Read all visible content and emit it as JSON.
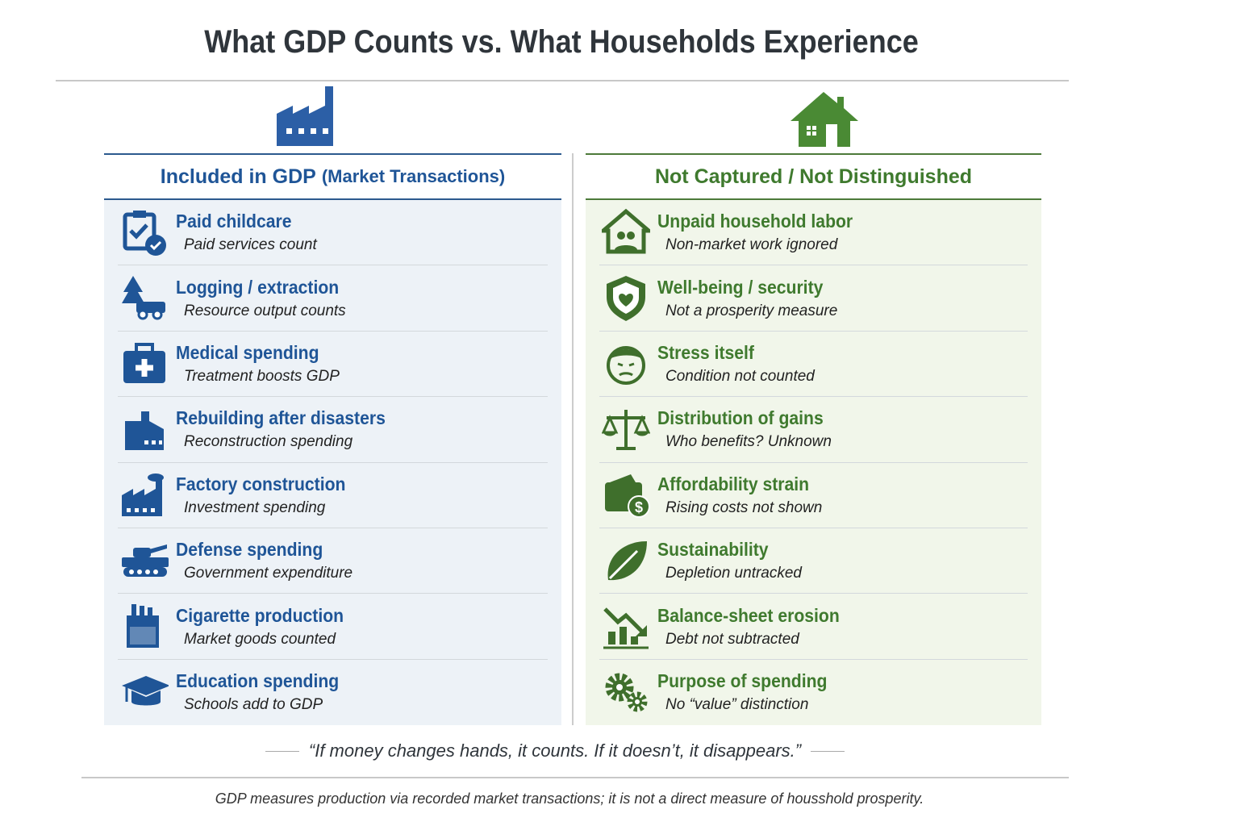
{
  "title": "What GDP Counts vs. What Households Experience",
  "colors": {
    "blue": "#1f5597",
    "green": "#3f7a2e"
  },
  "left": {
    "heading": "Included in GDP",
    "heading_sub": "(Market Transactions)",
    "top_icon": "factory-icon",
    "items": [
      {
        "title": "Paid childcare",
        "sub": "Paid services count",
        "icon": "clipboard-check-icon"
      },
      {
        "title": "Logging / extraction",
        "sub": "Resource output counts",
        "icon": "tree-truck-icon"
      },
      {
        "title": "Medical spending",
        "sub": "Treatment boosts GDP",
        "icon": "medical-kit-icon"
      },
      {
        "title": "Rebuilding after disasters",
        "sub": "Reconstruction spending",
        "icon": "building-icon"
      },
      {
        "title": "Factory construction",
        "sub": "Investment spending",
        "icon": "factory-icon"
      },
      {
        "title": "Defense spending",
        "sub": "Government expenditure",
        "icon": "tank-icon"
      },
      {
        "title": "Cigarette production",
        "sub": "Market goods counted",
        "icon": "cigarette-pack-icon"
      },
      {
        "title": "Education spending",
        "sub": "Schools add to GDP",
        "icon": "graduation-cap-icon"
      }
    ]
  },
  "right": {
    "heading": "Not Captured / Not Distinguished",
    "top_icon": "house-icon",
    "items": [
      {
        "title": "Unpaid household labor",
        "sub": "Non-market work ignored",
        "icon": "family-house-icon"
      },
      {
        "title": "Well-being / security",
        "sub": "Not a prosperity measure",
        "icon": "shield-heart-icon"
      },
      {
        "title": "Stress itself",
        "sub": "Condition not counted",
        "icon": "stressed-face-icon"
      },
      {
        "title": "Distribution of gains",
        "sub": "Who benefits? Unknown",
        "icon": "scales-icon"
      },
      {
        "title": "Affordability strain",
        "sub": "Rising costs not shown",
        "icon": "wallet-dollar-icon"
      },
      {
        "title": "Sustainability",
        "sub": "Depletion untracked",
        "icon": "leaf-icon"
      },
      {
        "title": "Balance-sheet erosion",
        "sub": "Debt not subtracted",
        "icon": "declining-chart-icon"
      },
      {
        "title": "Purpose of spending",
        "sub": "No “value” distinction",
        "icon": "gears-icon"
      }
    ]
  },
  "quote": "“If money changes hands, it counts. If it doesn’t, it disappears.”",
  "footnote": "GDP measures production via recorded market transactions; it is not a direct measure of housshold prosperity."
}
